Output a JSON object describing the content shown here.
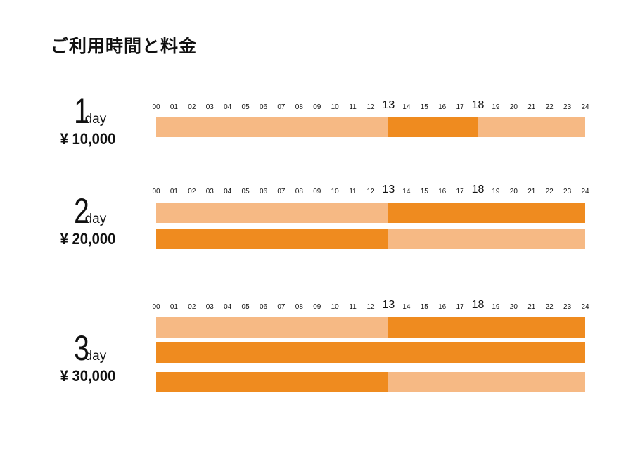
{
  "title": "ご利用時間と料金",
  "colors": {
    "off_hours": "#f6b984",
    "usage_hours": "#ef8b1f"
  },
  "chart_data": {
    "type": "bar",
    "hours_axis": [
      "00",
      "01",
      "02",
      "03",
      "04",
      "05",
      "06",
      "07",
      "08",
      "09",
      "10",
      "11",
      "12",
      "13",
      "14",
      "15",
      "16",
      "17",
      "18",
      "19",
      "20",
      "21",
      "22",
      "23",
      "24"
    ],
    "emphasized_ticks": [
      "13",
      "18"
    ],
    "xlim": [
      0,
      24
    ],
    "plans": [
      {
        "number": "1",
        "unit": "day",
        "price": "¥ 10,000",
        "rows": [
          {
            "usage_start": 13,
            "usage_end": 18
          }
        ]
      },
      {
        "number": "2",
        "unit": "day",
        "price": "¥ 20,000",
        "rows": [
          {
            "usage_start": 13,
            "usage_end": 24
          },
          {
            "usage_start": 0,
            "usage_end": 13
          }
        ]
      },
      {
        "number": "3",
        "unit": "day",
        "price": "¥ 30,000",
        "rows": [
          {
            "usage_start": 13,
            "usage_end": 24
          },
          {
            "usage_start": 0,
            "usage_end": 24
          },
          {
            "usage_start": 0,
            "usage_end": 13
          }
        ]
      }
    ]
  }
}
